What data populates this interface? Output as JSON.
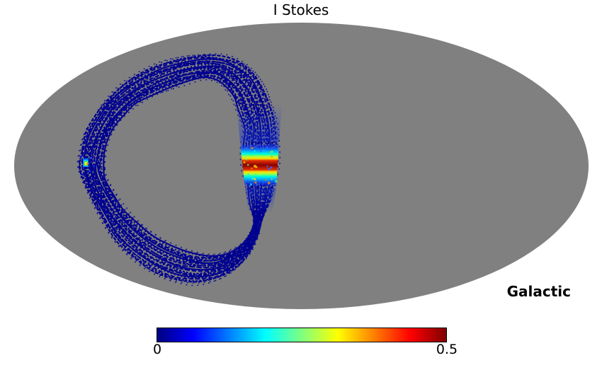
{
  "chart_data": {
    "type": "heatmap",
    "projection": "mollweide",
    "title": "I Stokes",
    "coordinate_system": "Galactic",
    "colormap": "jet",
    "value_range": [
      0,
      0.5
    ],
    "colorbar": {
      "tick_labels": [
        "0",
        "0.5"
      ],
      "gradient": [
        [
          "0%",
          "#000080"
        ],
        [
          "12.5%",
          "#0000ff"
        ],
        [
          "37.5%",
          "#00ffff"
        ],
        [
          "62.5%",
          "#ffff00"
        ],
        [
          "87.5%",
          "#ff0000"
        ],
        [
          "100%",
          "#800000"
        ]
      ]
    },
    "map": {
      "background": "#ffffff",
      "unseen_color": "#808080",
      "ellipse": {
        "cx": 425.5,
        "cy": 234.5,
        "rx": 405.5,
        "ry": 202.5
      },
      "scan_ring": {
        "color": "#000090",
        "num_striations": 27,
        "dash_patterns": [
          "",
          "8 2",
          "5 2",
          "3 2",
          "6 3",
          "2 3"
        ],
        "outer": [
          [
            112,
            238
          ],
          [
            114,
            212
          ],
          [
            121,
            188
          ],
          [
            133,
            166
          ],
          [
            149,
            144
          ],
          [
            171,
            122
          ],
          [
            197,
            104
          ],
          [
            226,
            91
          ],
          [
            257,
            82
          ],
          [
            288,
            78
          ],
          [
            316,
            80
          ],
          [
            339,
            88
          ],
          [
            359,
            103
          ],
          [
            373,
            124
          ],
          [
            381,
            146
          ],
          [
            388,
            170
          ],
          [
            391,
            206
          ],
          [
            391,
            235
          ],
          [
            388,
            258
          ],
          [
            381,
            284
          ],
          [
            370,
            310
          ],
          [
            363,
            336
          ],
          [
            350,
            360
          ],
          [
            331,
            380
          ],
          [
            306,
            394
          ],
          [
            276,
            400
          ],
          [
            246,
            396
          ],
          [
            217,
            384
          ],
          [
            190,
            366
          ],
          [
            166,
            343
          ],
          [
            146,
            314
          ],
          [
            126,
            274
          ]
        ],
        "inner": [
          [
            146,
            238
          ],
          [
            148,
            216
          ],
          [
            153,
            197
          ],
          [
            162,
            179
          ],
          [
            175,
            162
          ],
          [
            192,
            148
          ],
          [
            213,
            136
          ],
          [
            237,
            126
          ],
          [
            262,
            117
          ],
          [
            287,
            111
          ],
          [
            305,
            113
          ],
          [
            318,
            123
          ],
          [
            329,
            139
          ],
          [
            336,
            155
          ],
          [
            341,
            170
          ],
          [
            345,
            185
          ],
          [
            343,
            210
          ],
          [
            344,
            237
          ],
          [
            348,
            260
          ],
          [
            353,
            286
          ],
          [
            358,
            312
          ],
          [
            352,
            331
          ],
          [
            339,
            347
          ],
          [
            320,
            357
          ],
          [
            297,
            361
          ],
          [
            269,
            356
          ],
          [
            243,
            347
          ],
          [
            218,
            333
          ],
          [
            195,
            316
          ],
          [
            176,
            296
          ],
          [
            161,
            274
          ],
          [
            150,
            254
          ]
        ]
      },
      "plane_crossing": {
        "polygon": [
          [
            339,
            201
          ],
          [
            394,
            201
          ],
          [
            390,
            266
          ],
          [
            346,
            266
          ]
        ],
        "gradient_y": [
          201,
          266
        ],
        "gradient_stops": [
          [
            0.0,
            "#0030e0",
            0
          ],
          [
            0.1,
            "#1a3aee",
            0.75
          ],
          [
            0.2,
            "#00b4ff",
            1
          ],
          [
            0.26,
            "#00ffd0",
            1
          ],
          [
            0.31,
            "#a8ff3c",
            1
          ],
          [
            0.36,
            "#ffd800",
            1
          ],
          [
            0.4,
            "#e03000",
            1
          ],
          [
            0.5,
            "#8c0000",
            1
          ],
          [
            0.6,
            "#e03000",
            1
          ],
          [
            0.64,
            "#ffd800",
            1
          ],
          [
            0.69,
            "#a8ff3c",
            1
          ],
          [
            0.74,
            "#00ffd0",
            1
          ],
          [
            0.8,
            "#00b4ff",
            1
          ],
          [
            0.9,
            "#1a3aee",
            0.75
          ],
          [
            1.0,
            "#0030e0",
            0
          ]
        ],
        "speckle_colors": [
          "#00ffff",
          "#ffe000",
          "#ff8800",
          "#44ff66",
          "#3366ff"
        ],
        "glow_above": [
          [
            334,
            148
          ],
          [
            398,
            148
          ],
          [
            394,
            201
          ],
          [
            339,
            201
          ]
        ],
        "glow_below": [
          [
            346,
            266
          ],
          [
            390,
            266
          ],
          [
            384,
            302
          ],
          [
            351,
            302
          ]
        ],
        "glow_color": "#1430d0"
      },
      "hotspot": {
        "pixels": [
          [
            117,
            224,
            8,
            12,
            "#0077ee"
          ],
          [
            118,
            226,
            6,
            9,
            "#00ccff"
          ],
          [
            119,
            228,
            5,
            6,
            "#66ee44"
          ],
          [
            120,
            229,
            3,
            4,
            "#ffee00"
          ],
          [
            122,
            231,
            2,
            3,
            "#ff9900"
          ],
          [
            113,
            220,
            3,
            3,
            "#1122cc"
          ],
          [
            127,
            222,
            3,
            3,
            "#2244dd"
          ],
          [
            131,
            233,
            3,
            3,
            "#1122cc"
          ],
          [
            125,
            240,
            3,
            3,
            "#0044cc"
          ],
          [
            115,
            245,
            3,
            3,
            "#1122cc"
          ],
          [
            134,
            226,
            2,
            2,
            "#2233cc"
          ]
        ]
      }
    }
  }
}
